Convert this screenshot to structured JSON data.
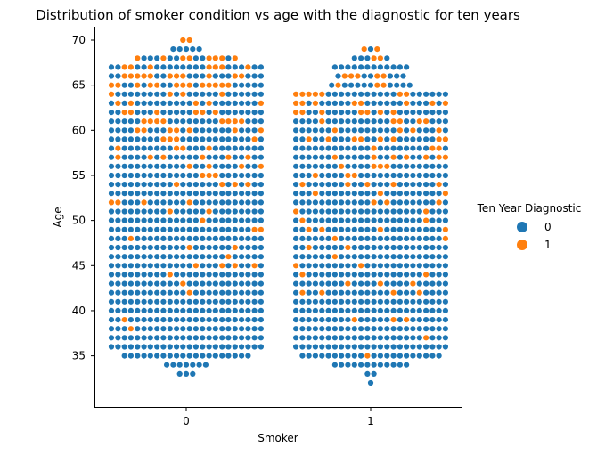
{
  "chart_data": {
    "type": "swarm",
    "title": "Distribution of smoker condition vs age with the diagnostic for ten years",
    "xlabel": "Smoker",
    "ylabel": "Age",
    "categories": [
      "0",
      "1"
    ],
    "ylim": [
      30,
      71
    ],
    "yticks": [
      35,
      40,
      45,
      50,
      55,
      60,
      65,
      70
    ],
    "grid": false,
    "legend": {
      "title": "Ten Year Diagnostic",
      "placement": "center-right",
      "entries": [
        "0",
        "1"
      ]
    },
    "colors": {
      "0": "#1f77b4",
      "1": "#ff7f0e"
    },
    "age_range_by_group": {
      "0": {
        "min": 33,
        "max": 70
      },
      "1": {
        "min": 32,
        "max": 69
      }
    },
    "approx_counts_per_age": {
      "0": {
        "33": 3,
        "34": 7,
        "35": 20,
        "36": 24,
        "37": 24,
        "38": 24,
        "39": 24,
        "40": 24,
        "41": 24,
        "42": 24,
        "43": 24,
        "44": 24,
        "45": 24,
        "46": 24,
        "47": 24,
        "48": 24,
        "49": 24,
        "50": 24,
        "51": 24,
        "52": 24,
        "53": 24,
        "54": 24,
        "55": 24,
        "56": 24,
        "57": 24,
        "58": 24,
        "59": 24,
        "60": 24,
        "61": 24,
        "62": 24,
        "63": 24,
        "64": 24,
        "65": 24,
        "66": 24,
        "67": 24,
        "68": 16,
        "69": 5,
        "70": 2
      },
      "1": {
        "32": 1,
        "33": 2,
        "34": 12,
        "35": 22,
        "36": 24,
        "37": 24,
        "38": 24,
        "39": 24,
        "40": 24,
        "41": 24,
        "42": 24,
        "43": 24,
        "44": 24,
        "45": 24,
        "46": 24,
        "47": 24,
        "48": 24,
        "49": 24,
        "50": 24,
        "51": 24,
        "52": 24,
        "53": 24,
        "54": 24,
        "55": 24,
        "56": 24,
        "57": 24,
        "58": 24,
        "59": 24,
        "60": 24,
        "61": 24,
        "62": 24,
        "63": 24,
        "64": 24,
        "65": 13,
        "66": 11,
        "67": 12,
        "68": 6,
        "69": 3
      }
    },
    "approx_positive_rate_by_age": {
      "0": {
        "33": 0.0,
        "34": 0.0,
        "35": 0.0,
        "36": 0.02,
        "37": 0.05,
        "38": 0.03,
        "39": 0.03,
        "40": 0.02,
        "41": 0.03,
        "42": 0.05,
        "43": 0.03,
        "44": 0.07,
        "45": 0.05,
        "46": 0.05,
        "47": 0.08,
        "48": 0.08,
        "49": 0.1,
        "50": 0.12,
        "51": 0.08,
        "52": 0.1,
        "53": 0.12,
        "54": 0.12,
        "55": 0.15,
        "56": 0.15,
        "57": 0.18,
        "58": 0.2,
        "59": 0.2,
        "60": 0.25,
        "61": 0.25,
        "62": 0.25,
        "63": 0.3,
        "64": 0.3,
        "65": 0.35,
        "66": 0.4,
        "67": 0.35,
        "68": 0.35,
        "69": 0.0,
        "70": 1.0
      },
      "1": {
        "32": 0.0,
        "33": 0.0,
        "34": 0.0,
        "35": 0.06,
        "36": 0.05,
        "37": 0.06,
        "38": 0.05,
        "39": 0.05,
        "40": 0.06,
        "41": 0.06,
        "42": 0.08,
        "43": 0.06,
        "44": 0.08,
        "45": 0.08,
        "46": 0.1,
        "47": 0.1,
        "48": 0.12,
        "49": 0.12,
        "50": 0.15,
        "51": 0.15,
        "52": 0.15,
        "53": 0.18,
        "54": 0.18,
        "55": 0.2,
        "56": 0.22,
        "57": 0.22,
        "58": 0.22,
        "59": 0.25,
        "60": 0.28,
        "61": 0.28,
        "62": 0.3,
        "63": 0.35,
        "64": 0.3,
        "65": 0.3,
        "66": 0.25,
        "67": 0.25,
        "68": 0.3,
        "69": 0.3
      }
    }
  }
}
